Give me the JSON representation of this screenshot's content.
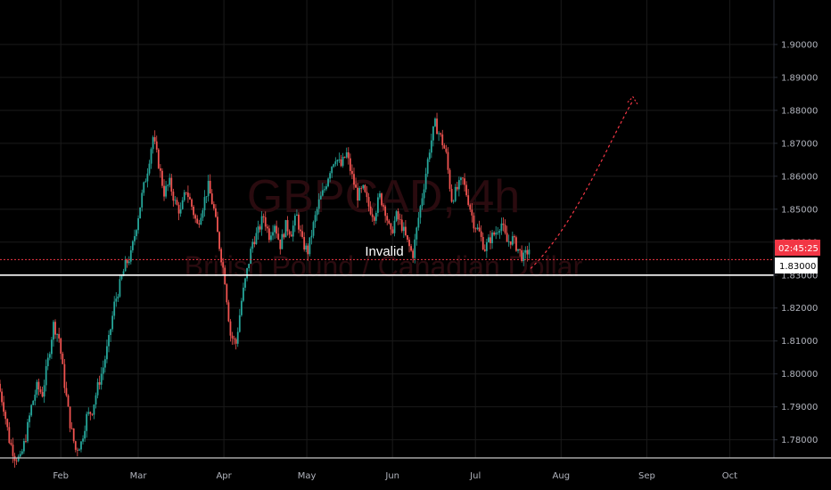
{
  "colors": {
    "background": "#000000",
    "grid": "#1a1a1a",
    "axis_line": "#2a2e39",
    "axis_text": "#b2b5be",
    "up": "#26a69a",
    "down": "#ef5350",
    "level_line": "#ffffff",
    "last_price": "#f23645",
    "watermark": "#2a0b0f"
  },
  "watermark": {
    "symbol": "GBPCAD, 4h",
    "description": "British Pound / Canadian Dollar"
  },
  "annotation": {
    "label": "Invalid"
  },
  "price_labels": {
    "countdown": "02:45:25",
    "level": "1.83000"
  },
  "chart_data": {
    "type": "candlestick",
    "x_tick_labels": [
      "Feb",
      "Mar",
      "Apr",
      "May",
      "Jun",
      "Jul",
      "Aug",
      "Sep",
      "Oct"
    ],
    "x_tick_days": [
      32,
      60,
      91,
      121,
      152,
      182,
      213,
      244,
      274
    ],
    "x_range_days": [
      10,
      290
    ],
    "y_tick_labels": [
      "1.90000",
      "1.89000",
      "1.88000",
      "1.87000",
      "1.86000",
      "1.85000",
      "1.84000",
      "1.83000",
      "1.82000",
      "1.81000",
      "1.80000",
      "1.79000",
      "1.78000"
    ],
    "y_ticks": [
      1.9,
      1.89,
      1.88,
      1.87,
      1.86,
      1.85,
      1.84,
      1.83,
      1.82,
      1.81,
      1.8,
      1.79,
      1.78
    ],
    "ylim": [
      1.7745,
      1.9135
    ],
    "grid": true,
    "horizontal_level": 1.83,
    "last_price": 1.8347,
    "price_path": [
      [
        10,
        1.797
      ],
      [
        12,
        1.79
      ],
      [
        14,
        1.78
      ],
      [
        16,
        1.775
      ],
      [
        18,
        1.774
      ],
      [
        20,
        1.781
      ],
      [
        22,
        1.79
      ],
      [
        24,
        1.796
      ],
      [
        26,
        1.794
      ],
      [
        28,
        1.804
      ],
      [
        30,
        1.815
      ],
      [
        32,
        1.811
      ],
      [
        34,
        1.797
      ],
      [
        36,
        1.785
      ],
      [
        38,
        1.777
      ],
      [
        40,
        1.779
      ],
      [
        42,
        1.787
      ],
      [
        44,
        1.789
      ],
      [
        46,
        1.796
      ],
      [
        48,
        1.802
      ],
      [
        50,
        1.81
      ],
      [
        52,
        1.821
      ],
      [
        54,
        1.827
      ],
      [
        56,
        1.833
      ],
      [
        58,
        1.836
      ],
      [
        60,
        1.845
      ],
      [
        62,
        1.854
      ],
      [
        64,
        1.862
      ],
      [
        66,
        1.872
      ],
      [
        68,
        1.864
      ],
      [
        70,
        1.855
      ],
      [
        72,
        1.858
      ],
      [
        74,
        1.852
      ],
      [
        76,
        1.849
      ],
      [
        78,
        1.856
      ],
      [
        80,
        1.851
      ],
      [
        82,
        1.845
      ],
      [
        84,
        1.851
      ],
      [
        86,
        1.857
      ],
      [
        88,
        1.85
      ],
      [
        90,
        1.839
      ],
      [
        92,
        1.829
      ],
      [
        94,
        1.812
      ],
      [
        96,
        1.809
      ],
      [
        98,
        1.822
      ],
      [
        100,
        1.831
      ],
      [
        102,
        1.84
      ],
      [
        104,
        1.843
      ],
      [
        106,
        1.848
      ],
      [
        108,
        1.842
      ],
      [
        110,
        1.846
      ],
      [
        112,
        1.839
      ],
      [
        114,
        1.845
      ],
      [
        116,
        1.843
      ],
      [
        118,
        1.848
      ],
      [
        120,
        1.84
      ],
      [
        122,
        1.837
      ],
      [
        124,
        1.845
      ],
      [
        126,
        1.852
      ],
      [
        128,
        1.856
      ],
      [
        130,
        1.862
      ],
      [
        132,
        1.866
      ],
      [
        134,
        1.863
      ],
      [
        136,
        1.867
      ],
      [
        138,
        1.86
      ],
      [
        140,
        1.854
      ],
      [
        142,
        1.856
      ],
      [
        144,
        1.851
      ],
      [
        146,
        1.848
      ],
      [
        148,
        1.854
      ],
      [
        150,
        1.85
      ],
      [
        152,
        1.842
      ],
      [
        154,
        1.848
      ],
      [
        156,
        1.845
      ],
      [
        158,
        1.84
      ],
      [
        160,
        1.836
      ],
      [
        162,
        1.847
      ],
      [
        164,
        1.857
      ],
      [
        166,
        1.868
      ],
      [
        168,
        1.876
      ],
      [
        170,
        1.872
      ],
      [
        172,
        1.867
      ],
      [
        174,
        1.853
      ],
      [
        176,
        1.856
      ],
      [
        178,
        1.859
      ],
      [
        180,
        1.853
      ],
      [
        182,
        1.846
      ],
      [
        184,
        1.843
      ],
      [
        186,
        1.838
      ],
      [
        188,
        1.841
      ],
      [
        190,
        1.843
      ],
      [
        192,
        1.846
      ],
      [
        194,
        1.84
      ],
      [
        196,
        1.841
      ],
      [
        198,
        1.838
      ],
      [
        200,
        1.835
      ],
      [
        202,
        1.838
      ]
    ],
    "projection": [
      [
        202,
        1.832
      ],
      [
        218,
        1.845
      ],
      [
        230,
        1.87
      ],
      [
        239,
        1.883
      ]
    ]
  }
}
